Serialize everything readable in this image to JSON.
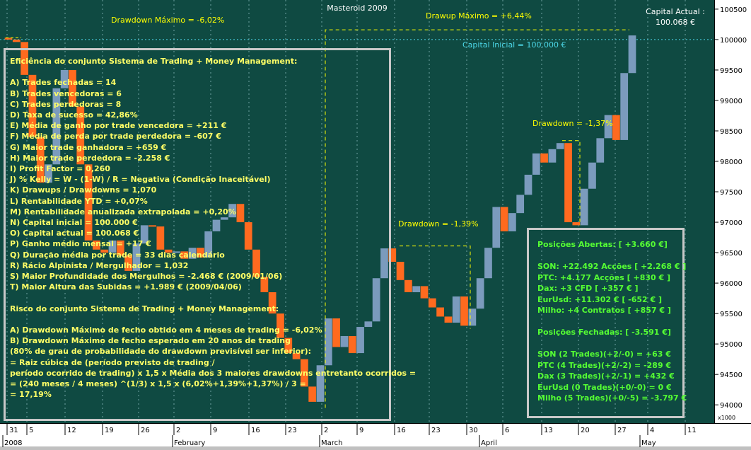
{
  "chart_data": {
    "type": "candlestick",
    "title": "Masteroid 2009",
    "ylim": [
      93700,
      100650
    ],
    "yticks": [
      94000,
      94500,
      95000,
      95500,
      96000,
      96500,
      97000,
      97500,
      98000,
      98500,
      99000,
      99500,
      100000,
      100500
    ],
    "ytick_labels": [
      "94000",
      "94500",
      "95000",
      "95500",
      "96000",
      "96500",
      "97000",
      "97500",
      "98000",
      "98500",
      "99000",
      "99500",
      "100000",
      "100500"
    ],
    "yunit": "x1000",
    "xtick_labels": [
      "31",
      "5",
      "12",
      "19",
      "26",
      "2",
      "9",
      "16",
      "23",
      "2",
      "9",
      "16",
      "23",
      "30",
      "6",
      "13",
      "20",
      "27",
      "4",
      "11"
    ],
    "month_labels": [
      "2008",
      "February",
      "March",
      "April",
      "May"
    ],
    "candles": [
      [
        "2008-01-31",
        100030,
        100060,
        99980,
        100000
      ],
      [
        "2008-02-01",
        100000,
        100050,
        99920,
        99960
      ],
      [
        "2008-02-04",
        99960,
        99980,
        99350,
        99420
      ],
      [
        "2008-02-05",
        99420,
        99440,
        98300,
        98400
      ],
      [
        "2008-02-06",
        98400,
        98420,
        97500,
        97650
      ],
      [
        "2008-02-07",
        97650,
        98000,
        97600,
        97950
      ],
      [
        "2008-02-08",
        97950,
        99250,
        97900,
        99200
      ],
      [
        "2008-02-11",
        99200,
        99560,
        99150,
        99500
      ],
      [
        "2008-02-12",
        99500,
        99520,
        98850,
        98900
      ],
      [
        "2008-02-13",
        98900,
        98920,
        97900,
        97950
      ],
      [
        "2008-02-14",
        97950,
        97970,
        96600,
        96700
      ],
      [
        "2008-02-15",
        96700,
        96720,
        96500,
        96550
      ],
      [
        "2008-02-18",
        96550,
        96600,
        96450,
        96500
      ],
      [
        "2008-02-19",
        96500,
        96720,
        96480,
        96700
      ],
      [
        "2008-02-20",
        96700,
        96760,
        96350,
        96450
      ],
      [
        "2008-02-21",
        96450,
        96480,
        96150,
        96200
      ],
      [
        "2008-02-22",
        96200,
        96700,
        96180,
        96650
      ],
      [
        "2008-02-25",
        96650,
        97000,
        96620,
        96950
      ],
      [
        "2008-02-26",
        96950,
        96980,
        96900,
        96930
      ],
      [
        "2008-02-27",
        96930,
        96950,
        96500,
        96550
      ],
      [
        "2008-02-28",
        96550,
        96600,
        96450,
        96500
      ],
      [
        "2008-02-29",
        96500,
        96560,
        96400,
        96520
      ],
      [
        "2008-03-03",
        96520,
        96540,
        96380,
        96400
      ],
      [
        "2008-03-04",
        96400,
        96600,
        96380,
        96580
      ],
      [
        "2008-03-05",
        96580,
        96600,
        96400,
        96420
      ],
      [
        "2008-03-06",
        96420,
        96880,
        96400,
        96850
      ],
      [
        "2008-03-07",
        96850,
        97060,
        96830,
        97040
      ],
      [
        "2008-03-10",
        97040,
        97100,
        97000,
        97080
      ],
      [
        "2008-03-11",
        97080,
        97320,
        97060,
        97300
      ],
      [
        "2008-03-12",
        97300,
        97320,
        96950,
        97000
      ],
      [
        "2008-03-13",
        97000,
        97020,
        96500,
        96550
      ],
      [
        "2008-03-14",
        96550,
        96570,
        96050,
        96100
      ],
      [
        "2008-03-17",
        96100,
        96120,
        95800,
        95850
      ],
      [
        "2008-03-18",
        95850,
        95870,
        95450,
        95500
      ],
      [
        "2008-03-19",
        95500,
        95520,
        95050,
        95100
      ],
      [
        "2008-03-20",
        95100,
        95120,
        94800,
        94850
      ],
      [
        "2008-03-21",
        94850,
        94870,
        94700,
        94750
      ],
      [
        "2008-03-24",
        94750,
        94770,
        94250,
        94300
      ],
      [
        "2008-03-25",
        94300,
        94320,
        94000,
        94050
      ],
      [
        "2008-03-26",
        94050,
        94700,
        94030,
        94650
      ],
      [
        "2008-03-27",
        94650,
        95450,
        94630,
        95420
      ],
      [
        "2008-03-28",
        95420,
        95440,
        94900,
        94950
      ],
      [
        "2008-03-31",
        94950,
        95150,
        94930,
        95130
      ],
      [
        "2008-04-01",
        95130,
        95150,
        94800,
        94850
      ],
      [
        "2008-04-02",
        94850,
        95300,
        94830,
        95280
      ],
      [
        "2008-04-03",
        95280,
        95400,
        95260,
        95370
      ],
      [
        "2008-04-04",
        95370,
        96100,
        95350,
        96080
      ],
      [
        "2008-04-07",
        96080,
        96600,
        96050,
        96570
      ],
      [
        "2008-04-08",
        96570,
        96590,
        96300,
        96350
      ],
      [
        "2008-04-09",
        96350,
        96370,
        96000,
        96050
      ],
      [
        "2008-04-10",
        96050,
        96070,
        95800,
        95850
      ],
      [
        "2008-04-11",
        95850,
        96000,
        95830,
        95950
      ],
      [
        "2008-04-14",
        95950,
        95970,
        95700,
        95750
      ],
      [
        "2008-04-15",
        95750,
        95770,
        95550,
        95600
      ],
      [
        "2008-04-16",
        95600,
        95620,
        95400,
        95450
      ],
      [
        "2008-04-17",
        95450,
        95470,
        95300,
        95350
      ],
      [
        "2008-04-18",
        95350,
        95800,
        95330,
        95780
      ],
      [
        "2008-04-21",
        95780,
        95800,
        95250,
        95300
      ],
      [
        "2008-04-22",
        95300,
        95600,
        95280,
        95580
      ],
      [
        "2008-04-23",
        95580,
        96100,
        95560,
        96080
      ],
      [
        "2008-04-24",
        96080,
        96600,
        96060,
        96580
      ],
      [
        "2008-04-25",
        96580,
        97300,
        96560,
        97250
      ],
      [
        "2008-04-28",
        97250,
        97270,
        96800,
        96850
      ],
      [
        "2008-04-29",
        96850,
        97170,
        96830,
        97150
      ],
      [
        "2008-04-30",
        97150,
        97500,
        97130,
        97450
      ],
      [
        "2008-05-01",
        97450,
        97800,
        97430,
        97780
      ],
      [
        "2008-05-02",
        97780,
        98150,
        97760,
        98130
      ],
      [
        "2008-05-05",
        98130,
        98150,
        97950,
        97980
      ],
      [
        "2008-05-06",
        97980,
        98220,
        97960,
        98200
      ],
      [
        "2008-05-07",
        98200,
        98330,
        98180,
        98300
      ],
      [
        "2008-05-08",
        98300,
        98320,
        96950,
        97000
      ],
      [
        "2008-05-09",
        97000,
        97020,
        96900,
        96950
      ],
      [
        "2008-05-12",
        96950,
        97600,
        96930,
        97550
      ],
      [
        "2008-05-13",
        97550,
        98000,
        97530,
        97980
      ],
      [
        "2008-05-14",
        97980,
        98400,
        97960,
        98380
      ],
      [
        "2008-05-15",
        98380,
        98800,
        98360,
        98760
      ],
      [
        "2008-05-16",
        98760,
        98780,
        98300,
        98350
      ],
      [
        "2008-05-19",
        98350,
        99500,
        98330,
        99450
      ],
      [
        "2008-05-20",
        99450,
        100100,
        99430,
        100068
      ]
    ],
    "annotations": {
      "title_text": "Masteroid 2009",
      "drawdown_max": "Drawdown Máximo = -6,02%",
      "drawup_max": "Drawup Máximo = +6,44%",
      "capital_actual_label": "Capital Actual :",
      "capital_actual_value": "100.068 €",
      "capital_inicial": "Capital Inicial = 100.000 €",
      "drawdown_1": "Drawdown = -1,39%",
      "drawdown_2": "Drawdown = -1,37%",
      "initial_capital_level": 100000
    },
    "colors": {
      "background": "#0f4a42",
      "up": "#7b9bbd",
      "down": "#ff6a1f",
      "annotation": "#ffff00",
      "reference": "#4dd8e8",
      "grid": "#6fa2a2"
    }
  },
  "left_panel": {
    "lines": [
      "Eficiência do conjunto Sistema de Trading + Money Management:",
      "",
      "A) Trades fechadas = 14",
      "B) Trades vencedoras = 6",
      "C) Trades perdedoras = 8",
      "D) Taxa de sucesso = 42,86%",
      "E) Média de ganho por trade vencedora = +211 €",
      "F) Média de perda por trade perdedora = -607 €",
      "G) Maior trade ganhadora = +659 €",
      "H) Maior trade perdedora = -2.258 €",
      "I) Profit Factor = 0,260",
      "J) % Kelly = W - (1-W) / R = Negativa (Condição Inaceitável)",
      "K) Drawups / Drawdowns = 1,070",
      "L) Rentabilidade YTD = +0,07%",
      "M) Rentabilidade anualizada extrapolada = +0,20%",
      "N) Capital inicial = 100.000 €",
      "O) Capital actual = 100.068 €",
      "P) Ganho médio mensal = +17 €",
      "Q) Duração média por trade = 33 dias calendário",
      "R) Rácio Alpinista / Mergulhador = 1,032",
      "S) Maior Profundidade dos Mergulhos = -2.468 € (2009/01/06)",
      "T) Maior Altura das Subidas = +1.989 € (2009/04/06)",
      "",
      "Risco do conjunto Sistema de Trading + Money Management:",
      "",
      "A) Drawdown Máximo de fecho obtido em 4 meses de trading = -6,02%",
      "B) Drawdown Máximo de fecho esperado em 20 anos de trading",
      "(80% de grau de probabilidade do drawdown previsível ser inferior):",
      "= Raiz cúbica de (período previsto de trading /",
      "período ocorrido de trading) x 1,5 x Média dos 3 maiores drawdowns entretanto ocorridos =",
      "= (240 meses / 4 meses) ^(1/3) x 1,5 x (6,02%+1,39%+1,37%) / 3 =",
      "= 17,19%"
    ]
  },
  "right_panel": {
    "lines": [
      "Posições Abertas: [ +3.660 €]",
      "",
      "SON: +22.492 Acções [ +2.268 € ]",
      "PTC: +4.177 Acções [ +830 € ]",
      "Dax: +3 CFD [ +357 € ]",
      "EurUsd: +11.302 € [ -652 € ]",
      "Milho: +4 Contratos [ +857 € ]",
      "",
      "Posições Fechadas: [ -3.591 €]",
      "",
      "SON (2 Trades)(+2/-0) = +63 €",
      "PTC (4 Trades)(+2/-2) = -289 €",
      "Dax (3 Trades)(+2/-1) = +432 €",
      "EurUsd (0 Trades)(+0/-0) = 0 €",
      "Milho (5 Trades)(+0/-5) = -3.797 €"
    ]
  }
}
